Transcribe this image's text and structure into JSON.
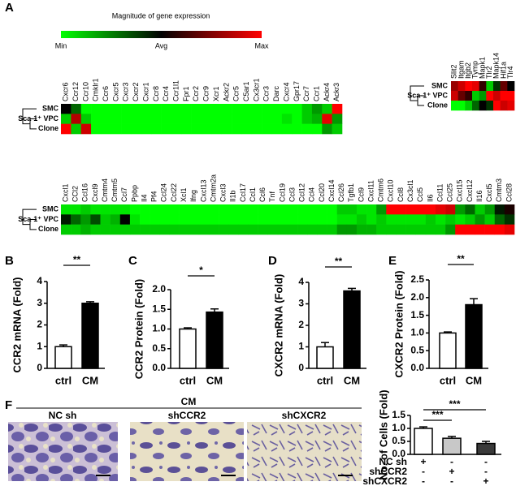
{
  "panels": [
    "A",
    "B",
    "C",
    "D",
    "E",
    "F"
  ],
  "colorbar": {
    "title": "Magnitude of gene expression",
    "ticks": [
      {
        "value": 0,
        "label": "Min"
      },
      {
        "value": 0.5,
        "label": "Avg"
      },
      {
        "value": 1,
        "label": "Max"
      }
    ]
  },
  "images": {
    "group": "CM",
    "labels": [
      "NC sh",
      "shCCR2",
      "shCXCR2"
    ]
  },
  "chart_data": [
    {
      "type": "heatmap",
      "rows": [
        "SMC",
        "Sca-1⁺ VPC",
        "Clone"
      ],
      "columns": [
        "Cxcr6",
        "Ccr12",
        "Ccr10",
        "Cmklr1",
        "Ccr6",
        "Cxcr5",
        "Cxcr3",
        "Cxcr2",
        "Cxcr1",
        "Ccr8",
        "Ccr4",
        "Ccr1l1",
        "Fpr1",
        "Ccr2",
        "Ccr9",
        "Xcr1",
        "Ackr2",
        "Ccr5",
        "C5ar1",
        "Cx3cr1",
        "Ccr3",
        "Darc",
        "Cxcr4",
        "Gpr17",
        "Ccr7",
        "Ccr1",
        "Ackr4",
        "Ackr3"
      ],
      "values": [
        [
          0.5,
          0.3,
          0,
          0,
          0,
          0,
          0,
          0,
          0,
          0,
          0,
          0,
          0,
          0,
          0,
          0,
          0,
          0,
          0,
          0,
          0,
          0,
          0,
          0,
          0.1,
          0.2,
          0.1,
          1
        ],
        [
          0.1,
          0.85,
          0.1,
          0,
          0,
          0,
          0,
          0,
          0,
          0,
          0,
          0,
          0,
          0,
          0,
          0,
          0,
          0,
          0,
          0,
          0,
          0,
          0.05,
          0,
          0.1,
          0.15,
          0.95,
          0.2
        ],
        [
          1,
          0.1,
          0.9,
          0,
          0,
          0,
          0,
          0,
          0,
          0,
          0,
          0,
          0,
          0,
          0,
          0,
          0,
          0,
          0,
          0,
          0,
          0,
          0,
          0,
          0,
          0,
          0.2,
          0.1
        ]
      ]
    },
    {
      "type": "heatmap",
      "rows": [
        "SMC",
        "Sca-1⁺ VPC",
        "Clone"
      ],
      "columns": [
        "Slit2",
        "Itgam",
        "Itgb2",
        "Tymp",
        "Mapk1",
        "Tlr2",
        "Mapk14",
        "Hif1a",
        "Tlr4"
      ],
      "values": [
        [
          0.8,
          0.9,
          1,
          0.95,
          0.6,
          0.1,
          0.4,
          0.7,
          0.5
        ],
        [
          0.9,
          0.7,
          0.6,
          0.1,
          0.2,
          1,
          0.9,
          1,
          1
        ],
        [
          0,
          0,
          0.1,
          0.3,
          0.5,
          0.4,
          1,
          0.9,
          0.95
        ]
      ]
    },
    {
      "type": "heatmap",
      "rows": [
        "SMC",
        "Sca-1⁺ VPC",
        "Clone"
      ],
      "columns": [
        "Cxcl1",
        "CCl2",
        "Ccl16",
        "Cxcl9",
        "Cmtm4",
        "Cmtm5",
        "Ccl7",
        "Ppbp",
        "Il4",
        "Pf4",
        "Ccl24",
        "Ccl22",
        "Xcl1",
        "Ifng",
        "Cxcl13",
        "Cmtm2a",
        "Cxcl3",
        "Il1b",
        "Ccl17",
        "Ccl1",
        "Ccl6",
        "Tnf",
        "Ccl19",
        "Ccl3",
        "Ccl12",
        "Ccl4",
        "Ccl20",
        "Cxcl14",
        "Ccl26",
        "Tgfb1",
        "Ccl9",
        "Cxcl11",
        "Cmtm6",
        "Cxcl10",
        "Ccl8",
        "Cx3cl1",
        "Ccl5",
        "Il6",
        "Ccl11",
        "Ccl25",
        "Cxcl15",
        "Cxcl12",
        "Il16",
        "Cxcl5",
        "Cmtm3",
        "Ccl28"
      ],
      "values": [
        [
          0.05,
          0.05,
          0.1,
          0.05,
          0.05,
          0.05,
          0.05,
          0,
          0,
          0,
          0,
          0,
          0,
          0,
          0,
          0,
          0,
          0,
          0,
          0,
          0,
          0,
          0,
          0,
          0,
          0,
          0,
          0,
          0.1,
          0.1,
          0.05,
          0.05,
          0.2,
          1,
          1,
          1,
          1,
          1,
          0.95,
          0.9,
          0.2,
          0.3,
          0.1,
          0.2,
          0.45,
          0.55
        ],
        [
          0.45,
          0.3,
          0.2,
          0.35,
          0.1,
          0.15,
          0.5,
          0.05,
          0,
          0,
          0,
          0,
          0,
          0,
          0,
          0,
          0,
          0,
          0,
          0,
          0,
          0,
          0,
          0,
          0,
          0,
          0,
          0,
          0.05,
          0.05,
          0.1,
          0.05,
          0.1,
          0.05,
          0.05,
          0.05,
          0.05,
          0.1,
          0.05,
          0.1,
          0.05,
          0.1,
          0.2,
          0.1,
          0.3,
          0.4
        ],
        [
          0.1,
          0.1,
          0.15,
          0.1,
          0.1,
          0.1,
          0.1,
          0.1,
          0.1,
          0.1,
          0.1,
          0.1,
          0.1,
          0.1,
          0.1,
          0.1,
          0.1,
          0.1,
          0.1,
          0.1,
          0.1,
          0.1,
          0.1,
          0.1,
          0.1,
          0.1,
          0.1,
          0.1,
          0.2,
          0.2,
          0.15,
          0.15,
          0.1,
          0.1,
          0.1,
          0.1,
          0.1,
          0.1,
          0.1,
          0.2,
          1,
          1,
          1,
          1,
          1,
          0.95
        ]
      ]
    },
    {
      "type": "bar",
      "ylabel": "CCR2 mRNA (Fold)",
      "categories": [
        "ctrl",
        "CM"
      ],
      "values": [
        1.0,
        3.0
      ],
      "errors": [
        0.08,
        0.07
      ],
      "colors": [
        "#ffffff",
        "#000000"
      ],
      "ylim": [
        0,
        4
      ],
      "yticks": [
        0,
        1,
        2,
        3,
        4
      ],
      "significance": [
        "**"
      ]
    },
    {
      "type": "bar",
      "ylabel": "CCR2 Protein (Fold)",
      "categories": [
        "ctrl",
        "CM"
      ],
      "values": [
        1.0,
        1.43
      ],
      "errors": [
        0.03,
        0.08
      ],
      "colors": [
        "#ffffff",
        "#000000"
      ],
      "ylim": [
        0,
        2
      ],
      "yticks": [
        {
          "value": 0,
          "label": "0.0"
        },
        0.5,
        {
          "value": 1,
          "label": "1.0"
        },
        1.5,
        {
          "value": 2,
          "label": "2.0"
        }
      ],
      "significance": [
        "*"
      ]
    },
    {
      "type": "bar",
      "ylabel": "CXCR2 mRNA (Fold)",
      "categories": [
        "ctrl",
        "CM"
      ],
      "values": [
        1.0,
        3.6
      ],
      "errors": [
        0.2,
        0.12
      ],
      "colors": [
        "#ffffff",
        "#000000"
      ],
      "ylim": [
        0,
        4
      ],
      "yticks": [
        0,
        1,
        2,
        3,
        4
      ],
      "significance": [
        "**"
      ]
    },
    {
      "type": "bar",
      "ylabel": "CXCR2 Protein (Fold)",
      "categories": [
        "ctrl",
        "CM"
      ],
      "values": [
        1.0,
        1.8
      ],
      "errors": [
        0.03,
        0.17
      ],
      "colors": [
        "#ffffff",
        "#000000"
      ],
      "ylim": [
        0,
        2.5
      ],
      "yticks": [
        {
          "value": 0,
          "label": "0.0"
        },
        0.5,
        {
          "value": 1,
          "label": "1.0"
        },
        1.5,
        {
          "value": 2,
          "label": "2.0"
        },
        2.5
      ],
      "significance": [
        "**"
      ]
    },
    {
      "type": "bar",
      "ylabel": "No. of Cells (Fold)",
      "values": [
        1.0,
        0.62,
        0.42
      ],
      "errors": [
        0.06,
        0.07,
        0.08
      ],
      "colors": [
        "#ffffff",
        "#c8c8c8",
        "#3a3a3a"
      ],
      "ylim": [
        0,
        1.5
      ],
      "yticks": [
        {
          "value": 0,
          "label": "0.0"
        },
        0.5,
        {
          "value": 1,
          "label": "1.0"
        },
        1.5
      ],
      "significance": [
        "***",
        "***"
      ],
      "conditions": [
        "NC sh",
        "shCCR2",
        "shCXCR2"
      ],
      "design": [
        [
          "+",
          "-",
          "-"
        ],
        [
          "-",
          "+",
          "-"
        ],
        [
          "-",
          "-",
          "+"
        ]
      ]
    }
  ]
}
